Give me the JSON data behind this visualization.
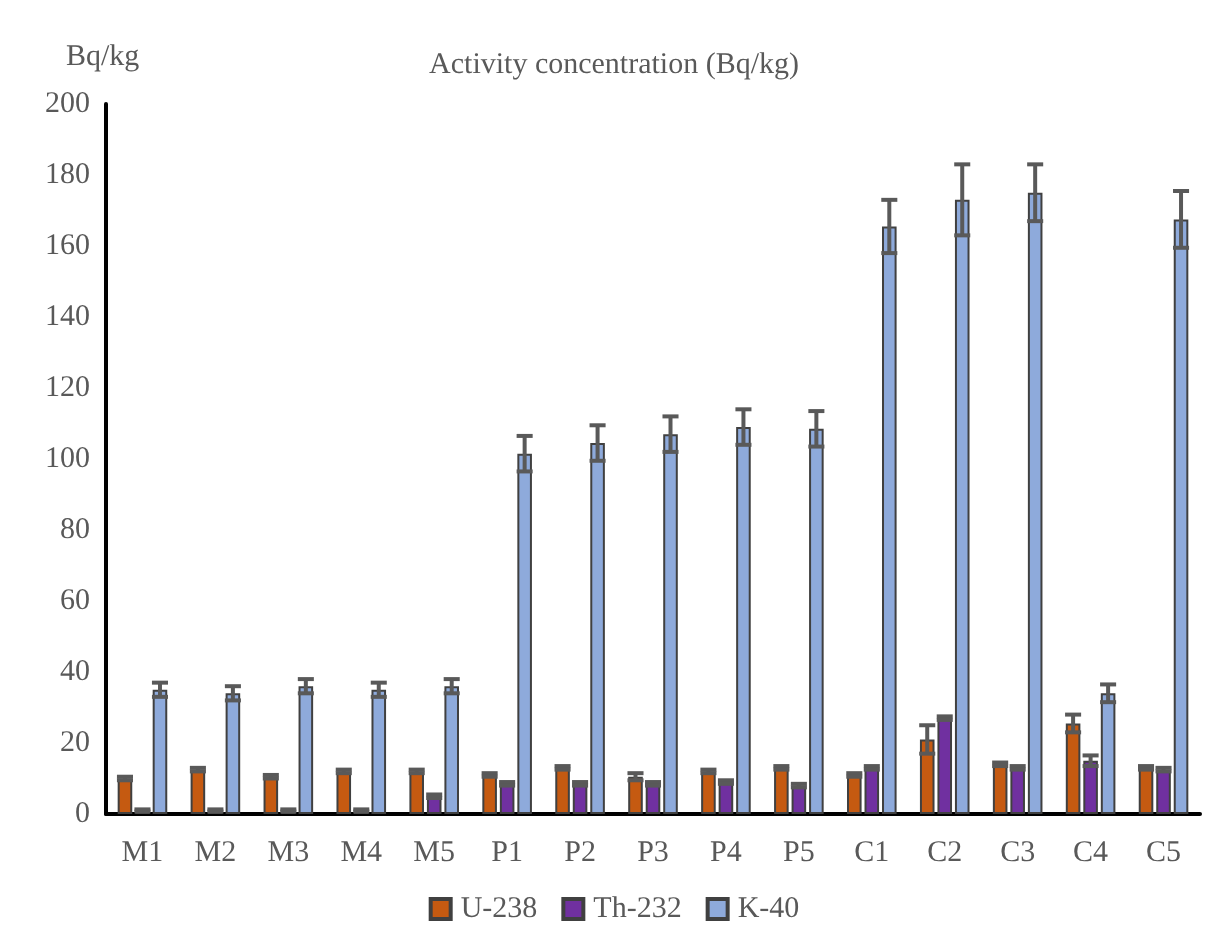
{
  "chart_data": {
    "type": "bar",
    "title": "Activity concentration (Bq/kg)",
    "ylabel": "Bq/kg",
    "categories": [
      "M1",
      "M2",
      "M3",
      "M4",
      "M5",
      "P1",
      "P2",
      "P3",
      "P4",
      "P5",
      "C1",
      "C2",
      "C3",
      "C4",
      "C5"
    ],
    "series": [
      {
        "name": "U-238",
        "color": "#c55a11",
        "values": [
          10,
          12.5,
          10.5,
          12,
          12,
          11,
          13,
          10.5,
          12,
          13,
          11,
          21,
          14,
          25.5,
          13
        ],
        "errors": [
          0.5,
          0.5,
          0.5,
          0.5,
          0.5,
          0.5,
          0.5,
          1,
          0.5,
          0.5,
          0.5,
          4,
          0.5,
          2.5,
          0.5
        ]
      },
      {
        "name": "Th-232",
        "color": "#7030a0",
        "values": [
          1,
          1,
          1,
          1,
          5,
          8.5,
          8.5,
          8.5,
          9,
          8,
          13,
          27,
          13,
          15,
          12.5
        ],
        "errors": [
          0.3,
          0.3,
          0.3,
          0.3,
          0.5,
          0.5,
          0.5,
          0.5,
          0.5,
          0.5,
          0.5,
          0.5,
          0.5,
          1.5,
          0.5
        ]
      },
      {
        "name": "K-40",
        "color": "#8eaadb",
        "values": [
          35,
          34,
          36,
          35,
          36,
          101.5,
          104.5,
          107,
          109,
          108.5,
          165.5,
          173,
          175,
          34,
          167.5
        ],
        "errors": [
          2,
          2,
          2,
          2,
          2,
          5,
          5,
          5,
          5,
          5,
          7.5,
          10,
          8,
          2.5,
          8
        ]
      }
    ],
    "ylim": [
      0,
      200
    ],
    "yticks": [
      0,
      20,
      40,
      60,
      80,
      100,
      120,
      140,
      160,
      180,
      200
    ],
    "grid": false,
    "legend": "bottom"
  }
}
